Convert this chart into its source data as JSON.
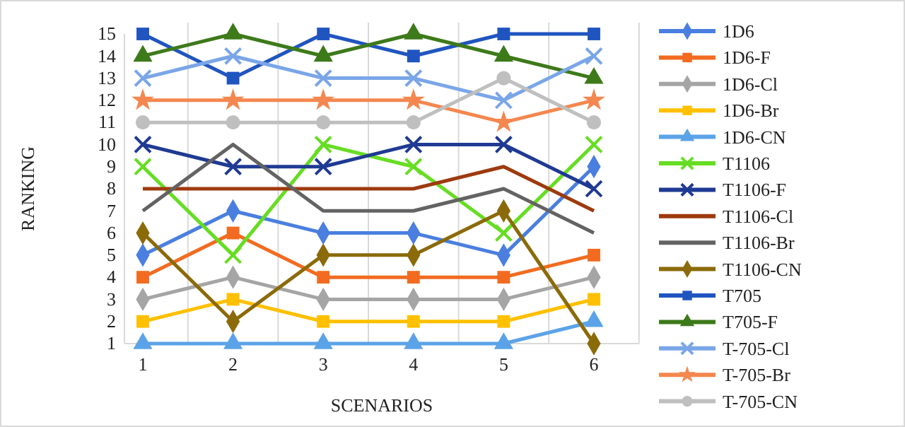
{
  "chart_data": {
    "type": "line",
    "xlabel": "SCENARIOS",
    "ylabel": "RANKING",
    "categories": [
      "1",
      "2",
      "3",
      "4",
      "5",
      "6"
    ],
    "ylim": [
      1,
      15
    ],
    "yticks": [
      1,
      2,
      3,
      4,
      5,
      6,
      7,
      8,
      9,
      10,
      11,
      12,
      13,
      14,
      15
    ],
    "grid": "x",
    "legend": "right",
    "line_style": "solid",
    "series": [
      {
        "name": "1D6",
        "color": "#4a7fe0",
        "marker": "diamond",
        "values": [
          5,
          7,
          6,
          6,
          5,
          9
        ]
      },
      {
        "name": "1D6-F",
        "color": "#f26b21",
        "marker": "square",
        "values": [
          4,
          6,
          4,
          4,
          4,
          5
        ]
      },
      {
        "name": "1D6-Cl",
        "color": "#a5a5a5",
        "marker": "diamond",
        "values": [
          3,
          4,
          3,
          3,
          3,
          4
        ]
      },
      {
        "name": "1D6-Br",
        "color": "#ffc000",
        "marker": "square",
        "values": [
          2,
          3,
          2,
          2,
          2,
          3
        ]
      },
      {
        "name": "1D6-CN",
        "color": "#5ba3e8",
        "marker": "triangle",
        "values": [
          1,
          1,
          1,
          1,
          1,
          2
        ]
      },
      {
        "name": "T1106",
        "color": "#66dd22",
        "marker": "cross",
        "values": [
          9,
          5,
          10,
          9,
          6,
          10
        ]
      },
      {
        "name": "T1106-F",
        "color": "#1f3a93",
        "marker": "cross",
        "values": [
          10,
          9,
          9,
          10,
          10,
          8
        ]
      },
      {
        "name": "T1106-Cl",
        "color": "#9e3a0e",
        "marker": "none",
        "values": [
          8,
          8,
          8,
          8,
          9,
          7
        ]
      },
      {
        "name": "T1106-Br",
        "color": "#636363",
        "marker": "none",
        "values": [
          7,
          10,
          7,
          7,
          8,
          6
        ]
      },
      {
        "name": "T1106-CN",
        "color": "#8b6a0a",
        "marker": "diamond",
        "values": [
          6,
          2,
          5,
          5,
          7,
          1
        ]
      },
      {
        "name": "T705",
        "color": "#2055c0",
        "marker": "square",
        "values": [
          15,
          13,
          15,
          14,
          15,
          15
        ]
      },
      {
        "name": "T705-F",
        "color": "#3d7a1a",
        "marker": "triangle",
        "values": [
          14,
          15,
          14,
          15,
          14,
          13
        ]
      },
      {
        "name": "T-705-Cl",
        "color": "#7aa6e8",
        "marker": "cross",
        "values": [
          13,
          14,
          13,
          13,
          12,
          14
        ]
      },
      {
        "name": "T-705-Br",
        "color": "#f4874f",
        "marker": "star",
        "values": [
          12,
          12,
          12,
          12,
          11,
          12
        ]
      },
      {
        "name": "T-705-CN",
        "color": "#bfbfbf",
        "marker": "circle",
        "values": [
          11,
          11,
          11,
          11,
          13,
          11
        ]
      }
    ]
  }
}
